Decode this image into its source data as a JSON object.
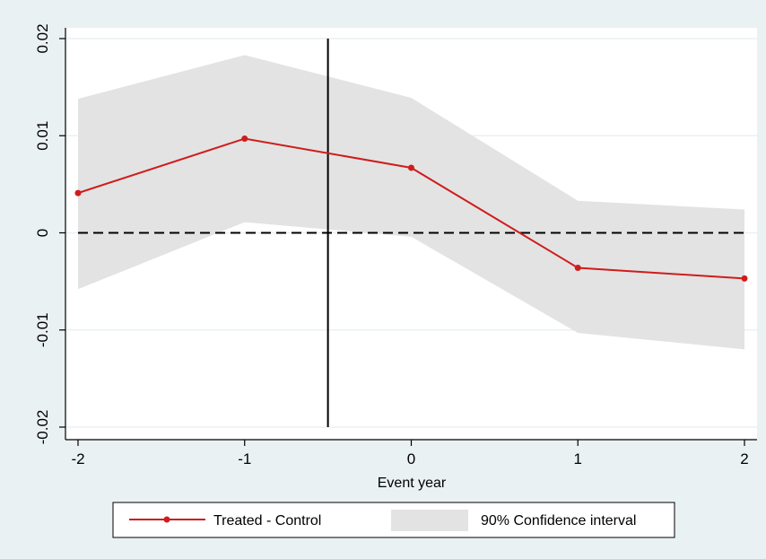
{
  "chart_data": {
    "type": "line",
    "x": [
      -2,
      -1,
      0,
      1,
      2
    ],
    "xlabel": "Event year",
    "ylabel": "",
    "xlim": [
      -2,
      2
    ],
    "ylim": [
      -0.02,
      0.02
    ],
    "x_ticks": [
      -2,
      -1,
      0,
      1,
      2
    ],
    "x_tick_labels": [
      "-2",
      "-1",
      "0",
      "1",
      "2"
    ],
    "y_ticks": [
      -0.02,
      -0.01,
      0,
      0.01,
      0.02
    ],
    "y_tick_labels": [
      "-0.02",
      "-0.01",
      "0",
      "0.01",
      "0.02"
    ],
    "grid": true,
    "series": [
      {
        "name": "Treated - Control",
        "values": [
          0.0041,
          0.0097,
          0.0067,
          -0.0036,
          -0.0047
        ],
        "color": "#d01c1c"
      }
    ],
    "confidence_band": {
      "name": "90% Confidence interval",
      "lower": [
        -0.0058,
        0.0011,
        -0.0004,
        -0.0103,
        -0.012
      ],
      "upper": [
        0.0138,
        0.0183,
        0.0139,
        0.0033,
        0.0024
      ],
      "color": "#e3e3e3"
    },
    "reference_lines": {
      "horizontal_dashed_at": 0,
      "vertical_solid_at": -0.5
    },
    "legend": {
      "position": "bottom",
      "entries": [
        "Treated - Control",
        "90% Confidence interval"
      ]
    }
  }
}
